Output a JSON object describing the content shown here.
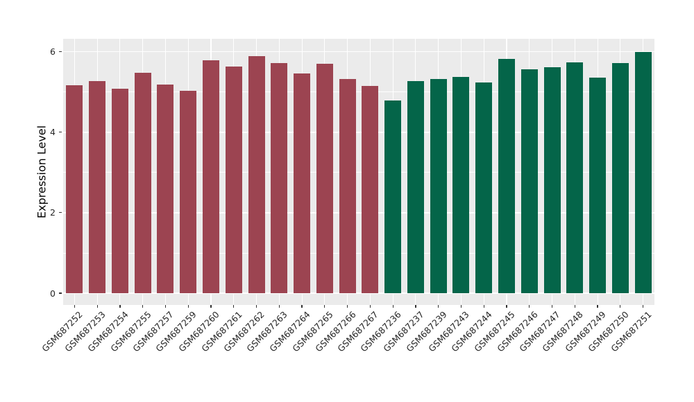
{
  "chart_data": {
    "type": "bar",
    "title": "",
    "xlabel": "",
    "ylabel": "Expression Level",
    "ylim": [
      0,
      6.32
    ],
    "yticks": [
      0,
      2,
      4,
      6
    ],
    "yticks_minor": [
      1,
      3,
      5
    ],
    "legend_position": "none",
    "grid": "white major and minor lines on gray panel, vertical line at each category",
    "panel_bg": "#EBEBEB",
    "grid_color": "#FFFFFF",
    "group_colors": {
      "left_group": "#9C4451",
      "right_group": "#046549"
    },
    "bars": [
      {
        "label": "GSM687252",
        "value": 5.16,
        "color": "#9C4451"
      },
      {
        "label": "GSM687253",
        "value": 5.28,
        "color": "#9C4451"
      },
      {
        "label": "GSM687254",
        "value": 5.08,
        "color": "#9C4451"
      },
      {
        "label": "GSM687255",
        "value": 5.47,
        "color": "#9C4451"
      },
      {
        "label": "GSM687257",
        "value": 5.18,
        "color": "#9C4451"
      },
      {
        "label": "GSM687259",
        "value": 5.03,
        "color": "#9C4451"
      },
      {
        "label": "GSM687260",
        "value": 5.78,
        "color": "#9C4451"
      },
      {
        "label": "GSM687261",
        "value": 5.63,
        "color": "#9C4451"
      },
      {
        "label": "GSM687262",
        "value": 5.9,
        "color": "#9C4451"
      },
      {
        "label": "GSM687263",
        "value": 5.72,
        "color": "#9C4451"
      },
      {
        "label": "GSM687264",
        "value": 5.46,
        "color": "#9C4451"
      },
      {
        "label": "GSM687265",
        "value": 5.7,
        "color": "#9C4451"
      },
      {
        "label": "GSM687266",
        "value": 5.32,
        "color": "#9C4451"
      },
      {
        "label": "GSM687267",
        "value": 5.15,
        "color": "#9C4451"
      },
      {
        "label": "GSM687236",
        "value": 4.79,
        "color": "#046549"
      },
      {
        "label": "GSM687237",
        "value": 5.27,
        "color": "#046549"
      },
      {
        "label": "GSM687239",
        "value": 5.33,
        "color": "#046549"
      },
      {
        "label": "GSM687243",
        "value": 5.37,
        "color": "#046549"
      },
      {
        "label": "GSM687244",
        "value": 5.24,
        "color": "#046549"
      },
      {
        "label": "GSM687245",
        "value": 5.82,
        "color": "#046549"
      },
      {
        "label": "GSM687246",
        "value": 5.57,
        "color": "#046549"
      },
      {
        "label": "GSM687247",
        "value": 5.61,
        "color": "#046549"
      },
      {
        "label": "GSM687248",
        "value": 5.73,
        "color": "#046549"
      },
      {
        "label": "GSM687249",
        "value": 5.35,
        "color": "#046549"
      },
      {
        "label": "GSM687250",
        "value": 5.72,
        "color": "#046549"
      },
      {
        "label": "GSM687251",
        "value": 6.0,
        "color": "#046549"
      }
    ]
  }
}
